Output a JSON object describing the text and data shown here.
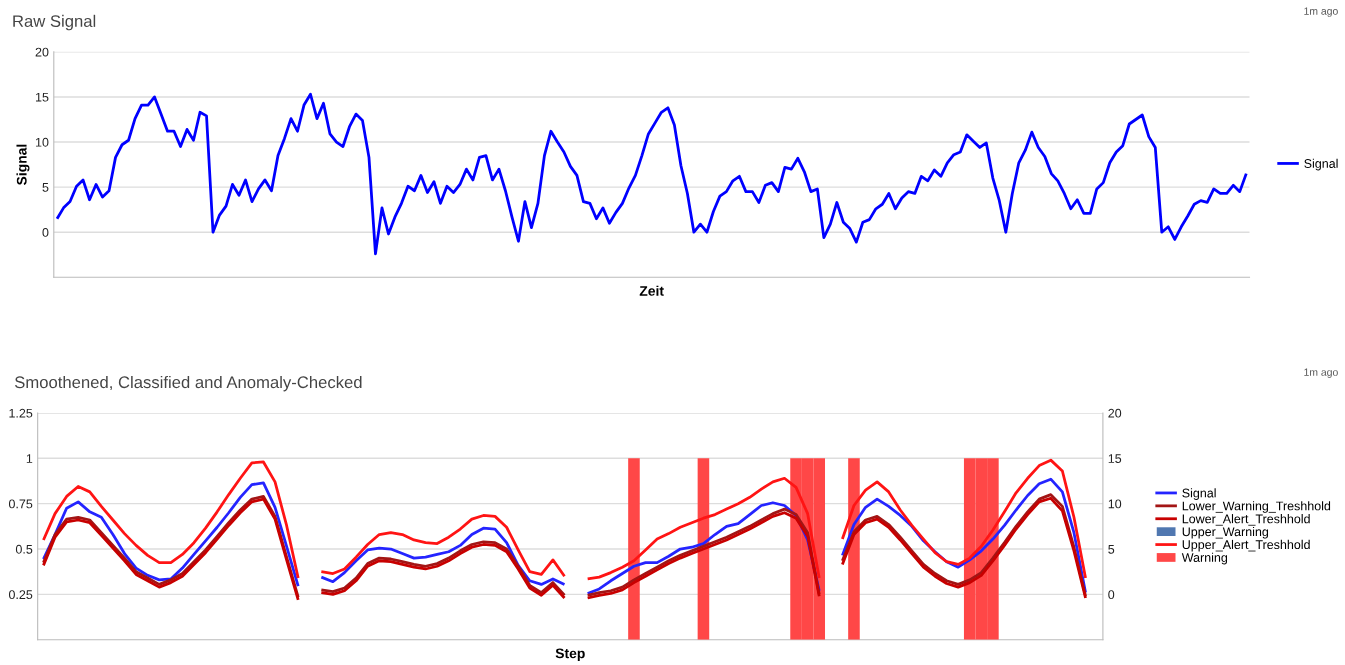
{
  "chart_data": [
    {
      "type": "line",
      "title": "Raw Signal",
      "xlabel": "Zeit",
      "ylabel": "Signal",
      "annotations": [
        "1m ago"
      ],
      "ylim": [
        -5,
        20
      ],
      "yticks": [
        0,
        5,
        10,
        15,
        20
      ],
      "tick_labels": "y",
      "grid": "y",
      "legend": "right",
      "categories": [
        null,
        null,
        null,
        null,
        null,
        null,
        null,
        null,
        null,
        null,
        null,
        null,
        null,
        null,
        null,
        null,
        null,
        null,
        null,
        null,
        null,
        null,
        null,
        null,
        null,
        null,
        null,
        null,
        null,
        null,
        null,
        null,
        null,
        null,
        null,
        null,
        null,
        null,
        null,
        null,
        null,
        null,
        null,
        null,
        null,
        null,
        null,
        null,
        null,
        null,
        null,
        null,
        null,
        null,
        null,
        null,
        null,
        null,
        null,
        null,
        null,
        null,
        null,
        null,
        null,
        null,
        null,
        null,
        null,
        null,
        null,
        null,
        null,
        null,
        null,
        null,
        null,
        null,
        null,
        null,
        null,
        null,
        null,
        null,
        null,
        null,
        null,
        null,
        null,
        null,
        null,
        null,
        null,
        null,
        null,
        null,
        null,
        null,
        null,
        null,
        null,
        null,
        null,
        null,
        null,
        null,
        null,
        null,
        null,
        null,
        null,
        null,
        null,
        null,
        null,
        null,
        null,
        null,
        null,
        null,
        null,
        null,
        null,
        null,
        null,
        null,
        null,
        null,
        null,
        null,
        null,
        null,
        null,
        null,
        null,
        null,
        null,
        null,
        null,
        null,
        null,
        null,
        null,
        null,
        null,
        null,
        null,
        null,
        null,
        null,
        null,
        null,
        null,
        null,
        null,
        null,
        null,
        null,
        null,
        null,
        null,
        null,
        null,
        null,
        null,
        null,
        null,
        null,
        null,
        null,
        null,
        null,
        null,
        null,
        null,
        null,
        null,
        null,
        null,
        null,
        null,
        null,
        null,
        null
      ],
      "series": [
        {
          "name": "Signal",
          "color": "#0000ff",
          "values": [
            1.5,
            2.7,
            3.4,
            5.1,
            5.8,
            3.6,
            5.3,
            3.9,
            4.6,
            8.3,
            9.7,
            10.2,
            12.6,
            14.1,
            14.1,
            15.0,
            13.1,
            11.2,
            11.2,
            9.5,
            11.4,
            10.2,
            13.3,
            12.9,
            0,
            1.9,
            2.9,
            5.3,
            4.1,
            5.8,
            3.4,
            4.8,
            5.8,
            4.6,
            8.5,
            10.4,
            12.6,
            11.2,
            14.1,
            15.3,
            12.6,
            14.3,
            10.9,
            10.0,
            9.5,
            11.7,
            13.1,
            12.4,
            8.3,
            -2.4,
            2.7,
            -0.2,
            1.7,
            3.2,
            5.1,
            4.6,
            6.3,
            4.4,
            5.6,
            3.2,
            5.1,
            4.4,
            5.3,
            7.0,
            5.8,
            8.3,
            8.5,
            5.8,
            7.0,
            4.6,
            1.7,
            -1.0,
            3.4,
            0.5,
            3.2,
            8.5,
            11.2,
            10.0,
            8.9,
            7.3,
            6.3,
            3.4,
            3.2,
            1.5,
            2.7,
            1.0,
            2.2,
            3.2,
            4.9,
            6.3,
            8.5,
            10.9,
            12.1,
            13.3,
            13.8,
            11.9,
            7.4,
            4.3,
            0,
            0.9,
            0,
            2.3,
            4.0,
            4.5,
            5.7,
            6.2,
            4.5,
            4.5,
            3.3,
            5.2,
            5.5,
            4.5,
            7.2,
            7.0,
            8.2,
            6.7,
            4.5,
            4.8,
            -0.6,
            0.9,
            3.3,
            1.1,
            0.4,
            -1.1,
            1.1,
            1.4,
            2.6,
            3.1,
            4.3,
            2.6,
            3.8,
            4.5,
            4.3,
            6.2,
            5.7,
            6.9,
            6.2,
            7.7,
            8.6,
            8.9,
            10.8,
            10.1,
            9.4,
            9.9,
            6.0,
            3.5,
            0,
            4.3,
            7.7,
            9.1,
            11.1,
            9.4,
            8.4,
            6.5,
            5.7,
            4.3,
            2.6,
            3.6,
            2.1,
            2.1,
            4.8,
            5.5,
            7.7,
            8.9,
            9.6,
            12.0,
            12.5,
            13.0,
            10.6,
            9.4,
            0,
            0.6,
            -0.8,
            0.6,
            1.8,
            3.1,
            3.5,
            3.3,
            4.8,
            4.3,
            4.3,
            5.2,
            4.5,
            6.5
          ]
        }
      ]
    },
    {
      "type": "line",
      "title": "Smoothened, Classified and Anomaly-Checked",
      "xlabel": "Step",
      "annotations": [
        "1m ago"
      ],
      "ylim": [
        0,
        1.25
      ],
      "yticks": [
        0.25,
        0.5,
        0.75,
        1,
        1.25
      ],
      "y2lim": [
        -5,
        20
      ],
      "y2ticks": [
        0,
        5,
        10,
        15,
        20
      ],
      "tick_labels": "y",
      "grid": "y",
      "legend": "right",
      "categories": [
        null,
        null,
        null,
        null,
        null,
        null,
        null,
        null,
        null,
        null,
        null,
        null,
        null,
        null,
        null,
        null,
        null,
        null,
        null,
        null,
        null,
        null,
        null,
        null,
        null,
        null,
        null,
        null,
        null,
        null,
        null,
        null,
        null,
        null,
        null,
        null,
        null,
        null,
        null,
        null,
        null,
        null,
        null,
        null,
        null,
        null,
        null,
        null,
        null,
        null,
        null,
        null,
        null,
        null,
        null,
        null,
        null,
        null,
        null,
        null,
        null,
        null,
        null,
        null,
        null,
        null,
        null,
        null,
        null,
        null,
        null,
        null,
        null,
        null,
        null,
        null,
        null,
        null,
        null,
        null,
        null,
        null,
        null,
        null,
        null,
        null,
        null,
        null,
        null,
        null,
        null,
        null
      ],
      "series": [
        {
          "name": "Signal",
          "color": "#2424ff",
          "axis": "y2",
          "values": [
            3.9,
            6.6,
            9.5,
            10.2,
            9.1,
            8.5,
            6.6,
            4.5,
            2.9,
            2.1,
            1.6,
            1.7,
            2.9,
            4.4,
            5.9,
            7.4,
            9.0,
            10.7,
            12.1,
            12.3,
            9.6,
            5.3,
            0.9,
            null,
            1.9,
            1.4,
            2.4,
            3.7,
            4.9,
            5.1,
            5.0,
            4.5,
            4.0,
            4.1,
            4.4,
            4.7,
            5.4,
            6.6,
            7.3,
            7.2,
            5.7,
            3.2,
            1.5,
            1.1,
            1.7,
            1.1,
            null,
            0.1,
            0.6,
            1.5,
            2.3,
            3.1,
            3.5,
            3.5,
            4.2,
            5.0,
            5.2,
            5.6,
            6.6,
            7.5,
            7.8,
            8.8,
            9.8,
            10.1,
            9.8,
            8.7,
            6.0,
            0.4,
            null,
            4.3,
            7.7,
            9.6,
            10.5,
            9.7,
            8.7,
            7.5,
            5.9,
            4.7,
            3.6,
            3.0,
            3.8,
            4.8,
            6.1,
            7.6,
            9.3,
            10.9,
            12.2,
            12.7,
            11.3,
            6.8,
            0.2,
            null
          ]
        },
        {
          "name": "Lower_Warning_Treshhold",
          "color": "#a31515",
          "axis": "y2",
          "values": [
            3.5,
            6.6,
            8.3,
            8.5,
            8.2,
            6.8,
            5.4,
            4.0,
            2.5,
            1.8,
            1.1,
            1.6,
            2.3,
            3.6,
            4.9,
            6.4,
            7.9,
            9.3,
            10.5,
            10.8,
            8.6,
            4.1,
            -0.3,
            null,
            0.5,
            0.3,
            0.7,
            1.8,
            3.4,
            4.0,
            3.9,
            3.6,
            3.3,
            3.1,
            3.4,
            4.0,
            4.8,
            5.5,
            5.8,
            5.7,
            5.0,
            3.1,
            1.0,
            0.2,
            1.3,
            -0.1,
            null,
            -0.1,
            0.2,
            0.4,
            0.8,
            1.6,
            2.3,
            3.0,
            3.7,
            4.3,
            4.8,
            5.3,
            5.8,
            6.3,
            6.9,
            7.5,
            8.2,
            8.9,
            9.4,
            8.8,
            6.8,
            0,
            null,
            3.7,
            6.9,
            8.2,
            8.6,
            7.7,
            6.3,
            4.8,
            3.3,
            2.3,
            1.5,
            1.1,
            1.6,
            2.4,
            4.0,
            5.7,
            7.5,
            9.1,
            10.5,
            11.0,
            9.7,
            5.2,
            -0.2,
            null
          ]
        },
        {
          "name": "Lower_Alert_Treshhold",
          "color": "#c80000",
          "axis": "y2",
          "values": [
            3.2,
            6.3,
            8.0,
            8.2,
            7.9,
            6.5,
            5.1,
            3.7,
            2.2,
            1.5,
            0.8,
            1.3,
            2.0,
            3.3,
            4.6,
            6.1,
            7.6,
            9.0,
            10.2,
            10.5,
            8.3,
            3.8,
            -0.6,
            null,
            0.2,
            0.0,
            0.4,
            1.5,
            3.1,
            3.7,
            3.6,
            3.3,
            3.0,
            2.8,
            3.1,
            3.7,
            4.5,
            5.2,
            5.5,
            5.4,
            4.7,
            2.8,
            0.7,
            -0.1,
            1.0,
            -0.4,
            null,
            -0.4,
            -0.1,
            0.1,
            0.5,
            1.3,
            2.0,
            2.7,
            3.4,
            4.0,
            4.5,
            5.0,
            5.5,
            6.0,
            6.6,
            7.2,
            7.9,
            8.6,
            9.0,
            8.4,
            6.4,
            -0.2,
            null,
            3.3,
            6.6,
            7.9,
            8.3,
            7.4,
            6.0,
            4.5,
            3.0,
            2.0,
            1.2,
            0.8,
            1.3,
            2.1,
            3.7,
            5.4,
            7.2,
            8.8,
            10.2,
            10.6,
            9.2,
            4.8,
            -0.4,
            null
          ]
        },
        {
          "name": "Upper_Warning",
          "color": "#5077b0",
          "type": "area",
          "axis": "y2",
          "values": [
            null,
            null,
            null,
            null,
            null,
            null,
            null,
            null,
            null,
            null,
            null,
            null,
            null,
            null,
            null,
            null,
            null,
            null,
            null,
            null,
            null,
            null,
            null,
            null,
            null,
            null,
            null,
            null,
            null,
            null,
            null,
            null,
            null,
            null,
            null,
            null,
            null,
            null,
            null,
            null,
            null,
            null,
            null,
            null,
            null,
            null,
            null,
            null,
            null,
            null,
            null,
            null,
            null,
            null,
            null,
            null,
            null,
            null,
            null,
            null,
            null,
            null,
            null,
            null,
            null,
            null,
            null,
            null,
            null,
            null,
            null,
            null,
            null,
            null,
            null,
            null,
            null,
            null,
            null,
            null,
            null,
            null,
            null,
            null,
            null,
            null,
            null,
            null,
            null,
            null,
            null,
            null
          ]
        },
        {
          "name": "Upper_Alert_Treshhold",
          "color": "#ff1414",
          "axis": "y2",
          "values": [
            6.0,
            8.9,
            10.8,
            11.9,
            11.3,
            9.7,
            8.2,
            6.7,
            5.4,
            4.3,
            3.5,
            3.5,
            4.4,
            5.7,
            7.3,
            9.1,
            11.0,
            12.8,
            14.5,
            14.6,
            12.4,
            7.6,
            1.8,
            null,
            2.5,
            2.3,
            2.8,
            4.1,
            5.5,
            6.6,
            6.8,
            6.6,
            6.0,
            5.7,
            5.6,
            6.3,
            7.2,
            8.3,
            8.7,
            8.6,
            7.4,
            4.9,
            2.5,
            2.2,
            3.8,
            2.0,
            null,
            1.7,
            1.9,
            2.4,
            3.0,
            3.7,
            4.9,
            6.1,
            6.7,
            7.4,
            7.9,
            8.4,
            8.8,
            9.4,
            10.0,
            10.7,
            11.6,
            12.4,
            12.8,
            11.8,
            8.9,
            1.8,
            null,
            6.1,
            9.8,
            11.5,
            12.4,
            11.3,
            9.3,
            7.6,
            6.1,
            4.6,
            3.6,
            3.3,
            4.0,
            5.3,
            7.1,
            9.1,
            11.2,
            12.8,
            14.2,
            14.8,
            13.6,
            8.5,
            1.8,
            null
          ]
        },
        {
          "name": "Warning",
          "color": "#ff4747",
          "type": "bar",
          "values": [
            null,
            null,
            null,
            null,
            null,
            null,
            null,
            null,
            null,
            null,
            null,
            null,
            null,
            null,
            null,
            null,
            null,
            null,
            null,
            null,
            null,
            null,
            null,
            null,
            null,
            null,
            null,
            null,
            null,
            null,
            null,
            null,
            null,
            null,
            null,
            null,
            null,
            null,
            null,
            null,
            null,
            null,
            null,
            null,
            null,
            null,
            null,
            null,
            null,
            null,
            null,
            1,
            null,
            null,
            null,
            null,
            null,
            1,
            null,
            null,
            null,
            null,
            null,
            null,
            null,
            1,
            1,
            1,
            null,
            null,
            1,
            null,
            null,
            null,
            null,
            null,
            null,
            null,
            null,
            null,
            1,
            1,
            1,
            null,
            null,
            null,
            null,
            null,
            null,
            null,
            null,
            null
          ]
        }
      ]
    }
  ]
}
